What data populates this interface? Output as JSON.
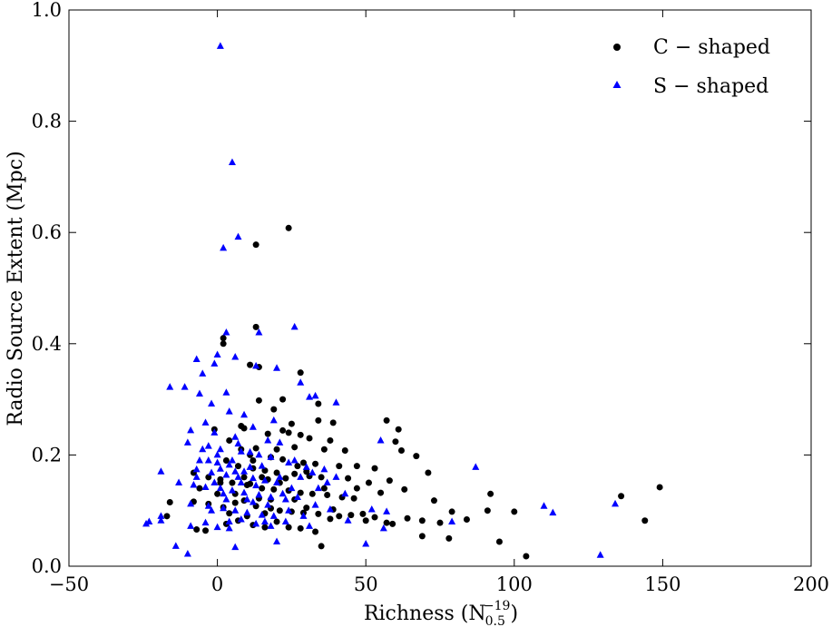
{
  "chart_data": {
    "type": "scatter",
    "title": "",
    "xlabel": "Richness (N",
    "xlabel_sub": "0.5",
    "xlabel_sup": "−19",
    "xlabel_close": ")",
    "ylabel": "Radio Source Extent (Mpc)",
    "xlim": [
      -50,
      200
    ],
    "ylim": [
      0.0,
      1.0
    ],
    "xticks": [
      -50,
      0,
      50,
      100,
      150,
      200
    ],
    "xtick_labels": [
      "−50",
      "0",
      "50",
      "100",
      "150",
      "200"
    ],
    "yticks": [
      0.0,
      0.2,
      0.4,
      0.6,
      0.8,
      1.0
    ],
    "ytick_labels": [
      "0.0",
      "0.2",
      "0.4",
      "0.6",
      "0.8",
      "1.0"
    ],
    "grid": false,
    "legend_position": "top-right",
    "series": [
      {
        "name": "C − shaped",
        "marker": "circle",
        "color": "#000000",
        "points": [
          [
            24,
            0.608
          ],
          [
            13,
            0.578
          ],
          [
            13,
            0.43
          ],
          [
            2,
            0.41
          ],
          [
            2,
            0.4
          ],
          [
            14,
            0.358
          ],
          [
            11,
            0.362
          ],
          [
            28,
            0.348
          ],
          [
            22,
            0.3
          ],
          [
            14,
            0.298
          ],
          [
            34,
            0.292
          ],
          [
            19,
            0.282
          ],
          [
            34,
            0.262
          ],
          [
            39,
            0.258
          ],
          [
            57,
            0.262
          ],
          [
            61,
            0.246
          ],
          [
            25,
            0.256
          ],
          [
            8,
            0.252
          ],
          [
            9,
            0.248
          ],
          [
            -1,
            0.246
          ],
          [
            22,
            0.244
          ],
          [
            24,
            0.24
          ],
          [
            17,
            0.238
          ],
          [
            28,
            0.236
          ],
          [
            31,
            0.23
          ],
          [
            38,
            0.226
          ],
          [
            60,
            0.224
          ],
          [
            4,
            0.226
          ],
          [
            13,
            0.212
          ],
          [
            26,
            0.214
          ],
          [
            36,
            0.21
          ],
          [
            43,
            0.208
          ],
          [
            62,
            0.208
          ],
          [
            67,
            0.198
          ],
          [
            11,
            0.2
          ],
          [
            18,
            0.196
          ],
          [
            22,
            0.192
          ],
          [
            29,
            0.186
          ],
          [
            33,
            0.184
          ],
          [
            47,
            0.18
          ],
          [
            53,
            0.176
          ],
          [
            71,
            0.168
          ],
          [
            7,
            0.18
          ],
          [
            12,
            0.176
          ],
          [
            16,
            0.172
          ],
          [
            20,
            0.168
          ],
          [
            26,
            0.166
          ],
          [
            31,
            0.162
          ],
          [
            35,
            0.16
          ],
          [
            44,
            0.158
          ],
          [
            51,
            0.15
          ],
          [
            58,
            0.154
          ],
          [
            -8,
            0.168
          ],
          [
            -3,
            0.16
          ],
          [
            1,
            0.156
          ],
          [
            5,
            0.15
          ],
          [
            10,
            0.146
          ],
          [
            15,
            0.14
          ],
          [
            19,
            0.138
          ],
          [
            24,
            0.136
          ],
          [
            28,
            0.132
          ],
          [
            32,
            0.13
          ],
          [
            37,
            0.128
          ],
          [
            42,
            0.124
          ],
          [
            46,
            0.122
          ],
          [
            55,
            0.132
          ],
          [
            63,
            0.138
          ],
          [
            73,
            0.118
          ],
          [
            92,
            0.13
          ],
          [
            -16,
            0.115
          ],
          [
            -8,
            0.116
          ],
          [
            -3,
            0.112
          ],
          [
            2,
            0.106
          ],
          [
            6,
            0.114
          ],
          [
            9,
            0.118
          ],
          [
            13,
            0.108
          ],
          [
            18,
            0.104
          ],
          [
            21,
            0.1
          ],
          [
            25,
            0.098
          ],
          [
            29,
            0.096
          ],
          [
            34,
            0.094
          ],
          [
            39,
            0.102
          ],
          [
            45,
            0.092
          ],
          [
            49,
            0.094
          ],
          [
            53,
            0.088
          ],
          [
            59,
            0.076
          ],
          [
            64,
            0.086
          ],
          [
            69,
            0.082
          ],
          [
            75,
            0.078
          ],
          [
            79,
            0.098
          ],
          [
            84,
            0.084
          ],
          [
            91,
            0.1
          ],
          [
            100,
            0.098
          ],
          [
            136,
            0.126
          ],
          [
            149,
            0.142
          ],
          [
            144,
            0.082
          ],
          [
            -17,
            0.09
          ],
          [
            -7,
            0.066
          ],
          [
            -4,
            0.064
          ],
          [
            3,
            0.076
          ],
          [
            7,
            0.082
          ],
          [
            12,
            0.074
          ],
          [
            16,
            0.07
          ],
          [
            20,
            0.08
          ],
          [
            24,
            0.07
          ],
          [
            28,
            0.068
          ],
          [
            33,
            0.062
          ],
          [
            41,
            0.09
          ],
          [
            50,
            0.082
          ],
          [
            57,
            0.078
          ],
          [
            69,
            0.054
          ],
          [
            78,
            0.05
          ],
          [
            95,
            0.044
          ],
          [
            104,
            0.018
          ],
          [
            35,
            0.036
          ],
          [
            1,
            0.15
          ],
          [
            11,
            0.148
          ],
          [
            17,
            0.156
          ],
          [
            23,
            0.158
          ],
          [
            30,
            0.17
          ],
          [
            6,
            0.13
          ],
          [
            14,
            0.122
          ],
          [
            -6,
            0.14
          ],
          [
            3,
            0.19
          ],
          [
            8,
            0.21
          ],
          [
            15,
            0.16
          ],
          [
            21,
            0.15
          ],
          [
            27,
            0.18
          ],
          [
            36,
            0.14
          ],
          [
            41,
            0.18
          ],
          [
            10,
            0.09
          ],
          [
            18,
            0.12
          ],
          [
            4,
            0.095
          ],
          [
            9,
            0.16
          ],
          [
            20,
            0.21
          ],
          [
            30,
            0.105
          ],
          [
            47,
            0.14
          ],
          [
            38,
            0.085
          ],
          [
            26,
            0.12
          ],
          [
            12,
            0.19
          ],
          [
            0,
            0.13
          ],
          [
            16,
            0.095
          ]
        ]
      },
      {
        "name": "S − shaped",
        "marker": "triangle",
        "color": "#0000ff",
        "points": [
          [
            1,
            0.935
          ],
          [
            5,
            0.726
          ],
          [
            7,
            0.592
          ],
          [
            2,
            0.572
          ],
          [
            26,
            0.43
          ],
          [
            3,
            0.42
          ],
          [
            14,
            0.42
          ],
          [
            0,
            0.38
          ],
          [
            6,
            0.376
          ],
          [
            -7,
            0.372
          ],
          [
            -1,
            0.364
          ],
          [
            13,
            0.36
          ],
          [
            20,
            0.356
          ],
          [
            -5,
            0.346
          ],
          [
            -11,
            0.322
          ],
          [
            -16,
            0.322
          ],
          [
            3,
            0.312
          ],
          [
            -6,
            0.31
          ],
          [
            28,
            0.33
          ],
          [
            31,
            0.304
          ],
          [
            33,
            0.306
          ],
          [
            40,
            0.294
          ],
          [
            -2,
            0.292
          ],
          [
            4,
            0.278
          ],
          [
            9,
            0.272
          ],
          [
            19,
            0.262
          ],
          [
            -4,
            0.258
          ],
          [
            12,
            0.25
          ],
          [
            -9,
            0.244
          ],
          [
            -1,
            0.24
          ],
          [
            6,
            0.232
          ],
          [
            17,
            0.226
          ],
          [
            21,
            0.222
          ],
          [
            -10,
            0.222
          ],
          [
            -3,
            0.216
          ],
          [
            1,
            0.21
          ],
          [
            8,
            0.206
          ],
          [
            14,
            0.2
          ],
          [
            18,
            0.196
          ],
          [
            -6,
            0.19
          ],
          [
            0,
            0.186
          ],
          [
            4,
            0.182
          ],
          [
            11,
            0.178
          ],
          [
            24,
            0.186
          ],
          [
            30,
            0.178
          ],
          [
            36,
            0.174
          ],
          [
            55,
            0.226
          ],
          [
            87,
            0.178
          ],
          [
            -19,
            0.17
          ],
          [
            -7,
            0.174
          ],
          [
            -2,
            0.168
          ],
          [
            3,
            0.164
          ],
          [
            7,
            0.16
          ],
          [
            12,
            0.158
          ],
          [
            16,
            0.154
          ],
          [
            20,
            0.15
          ],
          [
            28,
            0.16
          ],
          [
            32,
            0.168
          ],
          [
            40,
            0.16
          ],
          [
            -13,
            0.15
          ],
          [
            -8,
            0.146
          ],
          [
            -4,
            0.142
          ],
          [
            1,
            0.14
          ],
          [
            5,
            0.136
          ],
          [
            9,
            0.132
          ],
          [
            14,
            0.128
          ],
          [
            18,
            0.124
          ],
          [
            23,
            0.12
          ],
          [
            27,
            0.124
          ],
          [
            34,
            0.14
          ],
          [
            43,
            0.13
          ],
          [
            -9,
            0.112
          ],
          [
            -3,
            0.108
          ],
          [
            2,
            0.104
          ],
          [
            6,
            0.1
          ],
          [
            10,
            0.096
          ],
          [
            15,
            0.092
          ],
          [
            19,
            0.09
          ],
          [
            24,
            0.1
          ],
          [
            38,
            0.102
          ],
          [
            52,
            0.102
          ],
          [
            57,
            0.098
          ],
          [
            110,
            0.108
          ],
          [
            113,
            0.096
          ],
          [
            134,
            0.112
          ],
          [
            -24,
            0.076
          ],
          [
            -19,
            0.082
          ],
          [
            -9,
            0.072
          ],
          [
            -4,
            0.078
          ],
          [
            0,
            0.07
          ],
          [
            4,
            0.068
          ],
          [
            8,
            0.084
          ],
          [
            13,
            0.076
          ],
          [
            18,
            0.072
          ],
          [
            23,
            0.08
          ],
          [
            31,
            0.072
          ],
          [
            44,
            0.082
          ],
          [
            56,
            0.068
          ],
          [
            79,
            0.08
          ],
          [
            -23,
            0.08
          ],
          [
            -14,
            0.036
          ],
          [
            -10,
            0.022
          ],
          [
            6,
            0.034
          ],
          [
            20,
            0.044
          ],
          [
            50,
            0.04
          ],
          [
            129,
            0.02
          ],
          [
            -19,
            0.09
          ],
          [
            0,
            0.2
          ],
          [
            5,
            0.19
          ],
          [
            9,
            0.17
          ],
          [
            13,
            0.145
          ],
          [
            17,
            0.11
          ],
          [
            22,
            0.13
          ],
          [
            26,
            0.19
          ],
          [
            -1,
            0.15
          ],
          [
            3,
            0.12
          ],
          [
            7,
            0.22
          ],
          [
            11,
            0.205
          ],
          [
            15,
            0.18
          ],
          [
            -5,
            0.21
          ],
          [
            1,
            0.175
          ],
          [
            -3,
            0.19
          ],
          [
            8,
            0.15
          ],
          [
            12,
            0.115
          ],
          [
            16,
            0.08
          ],
          [
            21,
            0.16
          ],
          [
            25,
            0.14
          ],
          [
            -7,
            0.16
          ],
          [
            2,
            0.13
          ],
          [
            6,
            0.17
          ],
          [
            10,
            0.12
          ],
          [
            29,
            0.09
          ],
          [
            33,
            0.11
          ],
          [
            37,
            0.15
          ],
          [
            -2,
            0.1
          ],
          [
            4,
            0.08
          ]
        ]
      }
    ]
  }
}
